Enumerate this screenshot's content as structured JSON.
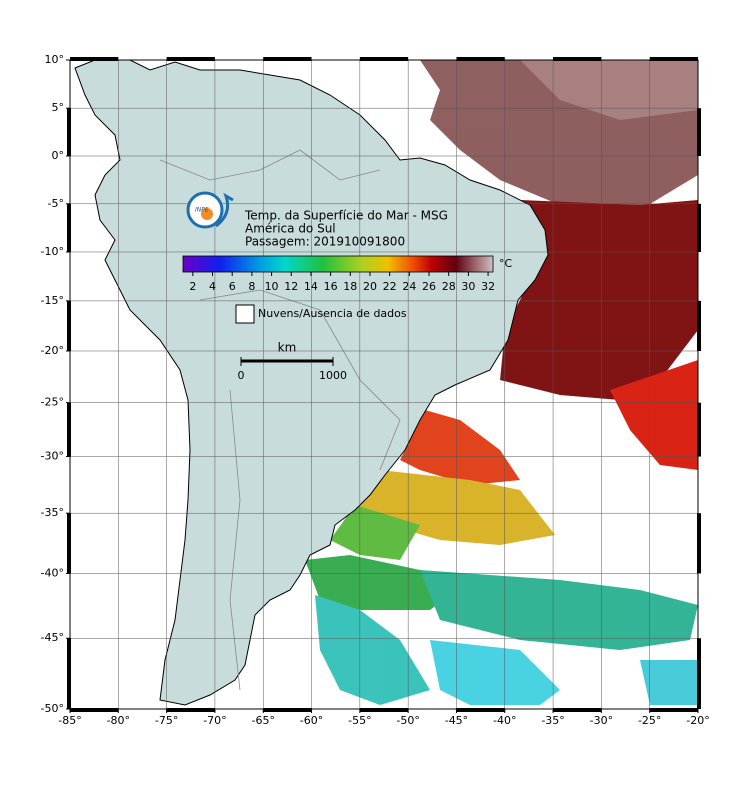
{
  "header": {
    "title": "Temp. da Superfície do Mar - MSG",
    "region": "América do Sul",
    "pass": "Passagem: 201910091800",
    "logo": "INPE"
  },
  "chart_data": {
    "type": "map",
    "xlim": [
      -85,
      -20
    ],
    "ylim": [
      -50,
      10
    ],
    "xticks": [
      {
        "value": -85,
        "label": "-85°"
      },
      {
        "value": -80,
        "label": "-80°"
      },
      {
        "value": -75,
        "label": "-75°"
      },
      {
        "value": -70,
        "label": "-70°"
      },
      {
        "value": -65,
        "label": "-65°"
      },
      {
        "value": -60,
        "label": "-60°"
      },
      {
        "value": -55,
        "label": "-55°"
      },
      {
        "value": -50,
        "label": "-50°"
      },
      {
        "value": -45,
        "label": "-45°"
      },
      {
        "value": -40,
        "label": "-40°"
      },
      {
        "value": -35,
        "label": "-35°"
      },
      {
        "value": -30,
        "label": "-30°"
      },
      {
        "value": -25,
        "label": "-25°"
      },
      {
        "value": -20,
        "label": "-20°"
      }
    ],
    "yticks": [
      {
        "value": 10,
        "label": "10°"
      },
      {
        "value": 5,
        "label": "5°"
      },
      {
        "value": 0,
        "label": "0°"
      },
      {
        "value": -5,
        "label": "-5°"
      },
      {
        "value": -10,
        "label": "-10°"
      },
      {
        "value": -15,
        "label": "-15°"
      },
      {
        "value": -20,
        "label": "-20°"
      },
      {
        "value": -25,
        "label": "-25°"
      },
      {
        "value": -30,
        "label": "-30°"
      },
      {
        "value": -35,
        "label": "-35°"
      },
      {
        "value": -40,
        "label": "-40°"
      },
      {
        "value": -45,
        "label": "-45°"
      },
      {
        "value": -50,
        "label": "-50°"
      }
    ],
    "grid": true,
    "colorbar": {
      "lim": [
        1,
        32.5
      ],
      "ticks": [
        2,
        4,
        6,
        8,
        10,
        12,
        14,
        16,
        18,
        20,
        22,
        24,
        26,
        28,
        30,
        32
      ],
      "unit": "°C"
    },
    "legend": "Nuvens/Ausencia de dados",
    "scale": {
      "unit": "km",
      "ticks": [
        0,
        1000
      ]
    }
  }
}
